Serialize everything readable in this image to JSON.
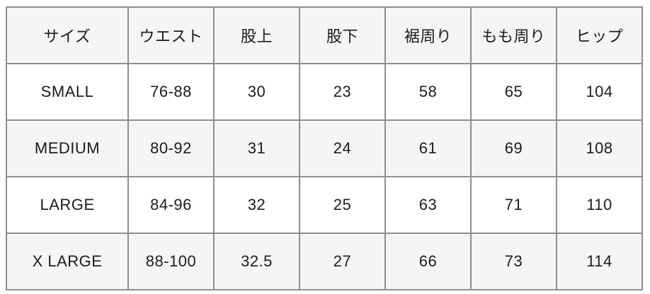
{
  "table": {
    "columns": [
      "サイズ",
      "ウエスト",
      "股上",
      "股下",
      "裾周り",
      "もも周り",
      "ヒップ"
    ],
    "rows": [
      {
        "cells": [
          "SMALL",
          "76-88",
          "30",
          "23",
          "58",
          "65",
          "104"
        ]
      },
      {
        "cells": [
          "MEDIUM",
          "80-92",
          "31",
          "24",
          "61",
          "69",
          "108"
        ]
      },
      {
        "cells": [
          "LARGE",
          "84-96",
          "32",
          "25",
          "63",
          "71",
          "110"
        ]
      },
      {
        "cells": [
          "X LARGE",
          "88-100",
          "32.5",
          "27",
          "66",
          "73",
          "114"
        ]
      }
    ]
  },
  "colors": {
    "header_background": "#f5f5f6",
    "stripe_background": "#f5f5f6",
    "row_background": "#ffffff",
    "border": "#8e8e8e",
    "text": "#1c1c1e"
  }
}
